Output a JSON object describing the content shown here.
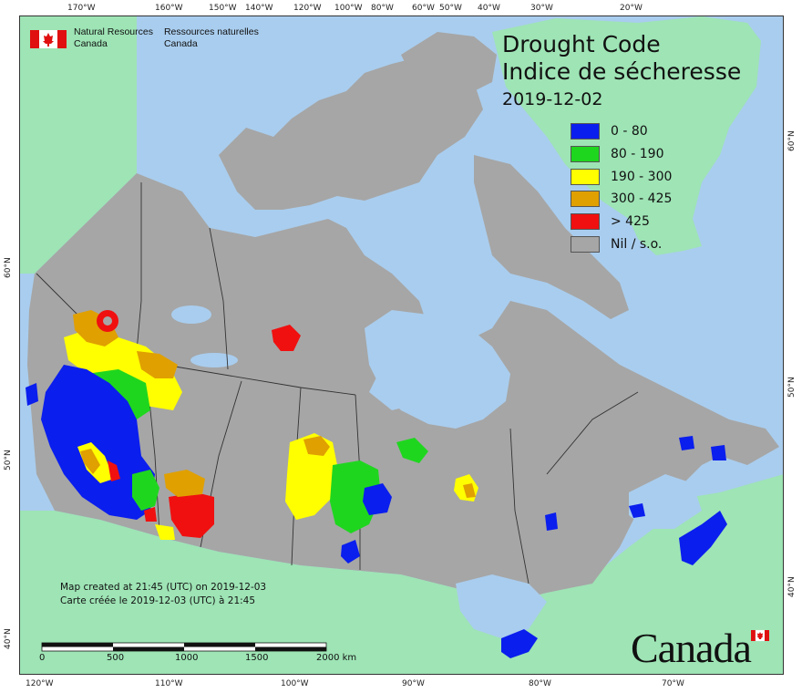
{
  "title": {
    "line1": "Drought Code",
    "line2": "Indice de sécheresse",
    "date": "2019-12-02"
  },
  "agency": {
    "en": "Natural Resources",
    "en2": "Canada",
    "fr": "Ressources naturelles",
    "fr2": "Canada"
  },
  "legend": [
    {
      "label": "0 - 80",
      "color": "#0a1eee"
    },
    {
      "label": "80 - 190",
      "color": "#1fd61f"
    },
    {
      "label": "190 - 300",
      "color": "#ffff00"
    },
    {
      "label": "300 - 425",
      "color": "#e0a000"
    },
    {
      "label": "> 425",
      "color": "#f01010"
    },
    {
      "label": "Nil / s.o.",
      "color": "#a6a6a6"
    }
  ],
  "credit": {
    "en": "Map created at 21:45 (UTC) on 2019-12-03",
    "fr": "Carte créée le 2019-12-03 (UTC) à 21:45"
  },
  "wordmark": "Canada",
  "scale": {
    "labels": [
      "0",
      "500",
      "1000",
      "1500",
      "2000 km"
    ]
  },
  "ticks": {
    "top": [
      "170°W",
      "160°W",
      "150°W",
      "140°W",
      "120°W",
      "100°W",
      "80°W",
      "60°W",
      "50°W",
      "40°W",
      "30°W",
      "20°W"
    ],
    "bottom": [
      "120°W",
      "110°W",
      "100°W",
      "90°W",
      "80°W",
      "70°W"
    ],
    "left": [
      "60°N",
      "50°N",
      "40°N"
    ],
    "right": [
      "60°N",
      "50°N",
      "40°N"
    ]
  },
  "colors": {
    "ocean": "#a9cdee",
    "land_other": "#9ee4b5",
    "canada": "#a6a6a6",
    "water": "#a9cdee"
  }
}
